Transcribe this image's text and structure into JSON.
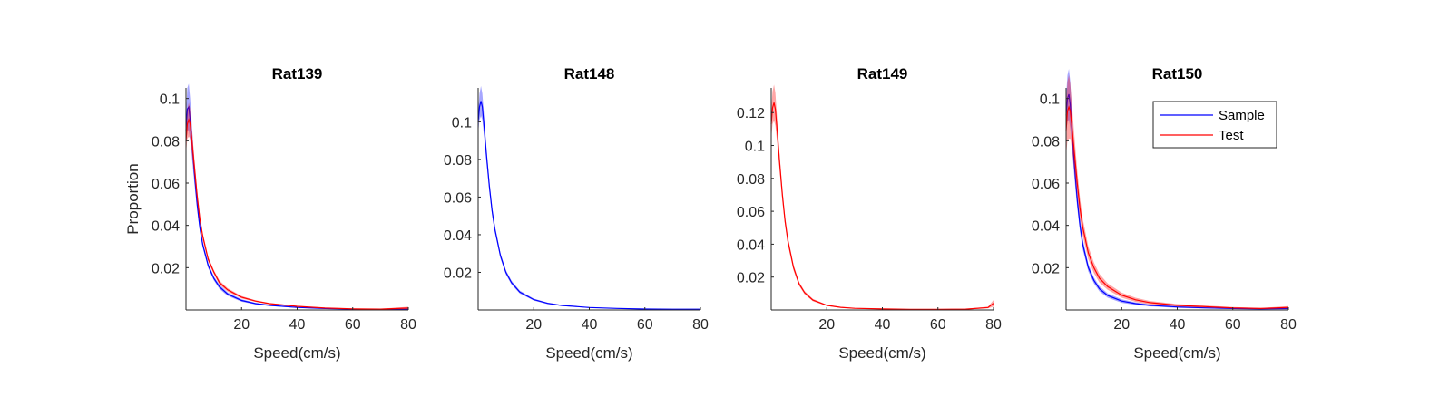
{
  "figure": {
    "background": "#ffffff",
    "axis_color": "#262626",
    "band_opacity": 0.35
  },
  "legend": {
    "placement": "top-right",
    "entries": [
      {
        "name": "Sample",
        "color": "#0000ff"
      },
      {
        "name": "Test",
        "color": "#ff0000"
      }
    ]
  },
  "chart_data": [
    {
      "type": "line",
      "title": "Rat139",
      "xlabel": "Speed(cm/s)",
      "ylabel": "Proportion",
      "xlim": [
        0,
        80
      ],
      "ylim": [
        0,
        0.105
      ],
      "xticks": [
        20,
        40,
        60,
        80
      ],
      "yticks": [
        0.02,
        0.04,
        0.06,
        0.08,
        0.1
      ],
      "ytick_labels": [
        "0.02",
        "0.04",
        "0.06",
        "0.08",
        "0.1"
      ],
      "grid": false,
      "series": [
        {
          "name": "Sample",
          "color": "#0000ff",
          "x": [
            0,
            0.5,
            1,
            1.5,
            2,
            3,
            4,
            5,
            6,
            8,
            10,
            12,
            15,
            20,
            25,
            30,
            40,
            50,
            60,
            70,
            80
          ],
          "y": [
            0.085,
            0.095,
            0.096,
            0.09,
            0.082,
            0.065,
            0.05,
            0.039,
            0.031,
            0.021,
            0.015,
            0.011,
            0.0075,
            0.0045,
            0.003,
            0.0022,
            0.0012,
            0.0007,
            0.0004,
            0.0003,
            0.0003
          ],
          "band": [
            0.008,
            0.01,
            0.011,
            0.01,
            0.008,
            0.005,
            0.003,
            0.002,
            0.0015,
            0.0012,
            0.001,
            0.001,
            0.0008,
            0.0006,
            0.0004,
            0.0003,
            0.0002,
            0.0002,
            0.0001,
            0.0001,
            0.0002
          ]
        },
        {
          "name": "Test",
          "color": "#ff0000",
          "x": [
            0,
            0.5,
            1,
            1.5,
            2,
            3,
            4,
            5,
            6,
            8,
            10,
            12,
            15,
            20,
            25,
            30,
            40,
            50,
            60,
            70,
            80
          ],
          "y": [
            0.08,
            0.088,
            0.09,
            0.088,
            0.082,
            0.068,
            0.054,
            0.043,
            0.035,
            0.024,
            0.018,
            0.013,
            0.0095,
            0.006,
            0.0042,
            0.003,
            0.0017,
            0.0009,
            0.0005,
            0.0004,
            0.0009
          ],
          "band": [
            0.006,
            0.007,
            0.008,
            0.007,
            0.006,
            0.004,
            0.003,
            0.002,
            0.0016,
            0.0012,
            0.001,
            0.001,
            0.0008,
            0.0006,
            0.0004,
            0.0003,
            0.0002,
            0.0002,
            0.0002,
            0.0002,
            0.0006
          ]
        }
      ]
    },
    {
      "type": "line",
      "title": "Rat148",
      "xlabel": "Speed(cm/s)",
      "ylabel": "",
      "xlim": [
        0,
        80
      ],
      "ylim": [
        0,
        0.118
      ],
      "xticks": [
        20,
        40,
        60,
        80
      ],
      "yticks": [
        0.02,
        0.04,
        0.06,
        0.08,
        0.1
      ],
      "ytick_labels": [
        "0.02",
        "0.04",
        "0.06",
        "0.08",
        "0.1"
      ],
      "grid": false,
      "series": [
        {
          "name": "Sample",
          "color": "#0000ff",
          "x": [
            0,
            0.5,
            1,
            1.5,
            2,
            3,
            4,
            5,
            6,
            8,
            10,
            12,
            15,
            20,
            25,
            30,
            40,
            50,
            60,
            70,
            80
          ],
          "y": [
            0.1,
            0.108,
            0.111,
            0.108,
            0.1,
            0.082,
            0.066,
            0.053,
            0.043,
            0.029,
            0.02,
            0.0145,
            0.0095,
            0.0055,
            0.0035,
            0.0024,
            0.0013,
            0.0008,
            0.0005,
            0.0004,
            0.0004
          ],
          "band": [
            0.006,
            0.007,
            0.008,
            0.007,
            0.006,
            0.004,
            0.003,
            0.0025,
            0.002,
            0.0015,
            0.0012,
            0.001,
            0.0008,
            0.0005,
            0.0004,
            0.0003,
            0.0002,
            0.0001,
            0.0001,
            0.0001,
            0.0002
          ]
        }
      ]
    },
    {
      "type": "line",
      "title": "Rat149",
      "xlabel": "Speed(cm/s)",
      "ylabel": "",
      "xlim": [
        0,
        80
      ],
      "ylim": [
        0,
        0.135
      ],
      "xticks": [
        20,
        40,
        60,
        80
      ],
      "yticks": [
        0.02,
        0.04,
        0.06,
        0.08,
        0.1,
        0.12
      ],
      "ytick_labels": [
        "0.02",
        "0.04",
        "0.06",
        "0.08",
        "0.1",
        "0.12"
      ],
      "grid": false,
      "series": [
        {
          "name": "Test",
          "color": "#ff0000",
          "x": [
            0,
            0.5,
            1,
            1.5,
            2,
            3,
            4,
            5,
            6,
            8,
            10,
            12,
            15,
            20,
            25,
            30,
            40,
            50,
            60,
            70,
            78,
            80
          ],
          "y": [
            0.113,
            0.123,
            0.126,
            0.122,
            0.112,
            0.09,
            0.07,
            0.054,
            0.042,
            0.026,
            0.016,
            0.0105,
            0.006,
            0.0028,
            0.0016,
            0.001,
            0.0006,
            0.0004,
            0.0004,
            0.0005,
            0.0015,
            0.004
          ],
          "band": [
            0.009,
            0.01,
            0.011,
            0.01,
            0.008,
            0.005,
            0.004,
            0.003,
            0.0025,
            0.0018,
            0.0012,
            0.001,
            0.0007,
            0.0004,
            0.0003,
            0.0002,
            0.0001,
            0.0001,
            0.0001,
            0.0002,
            0.0005,
            0.002
          ]
        }
      ]
    },
    {
      "type": "line",
      "title": "Rat150",
      "xlabel": "Speed(cm/s)",
      "ylabel": "",
      "xlim": [
        0,
        80
      ],
      "ylim": [
        0,
        0.105
      ],
      "xticks": [
        20,
        40,
        60,
        80
      ],
      "yticks": [
        0.02,
        0.04,
        0.06,
        0.08,
        0.1
      ],
      "ytick_labels": [
        "0.02",
        "0.04",
        "0.06",
        "0.08",
        "0.1"
      ],
      "grid": false,
      "series": [
        {
          "name": "Sample",
          "color": "#0000ff",
          "x": [
            0,
            0.5,
            1,
            1.5,
            2,
            3,
            4,
            5,
            6,
            8,
            10,
            12,
            15,
            20,
            25,
            30,
            40,
            50,
            60,
            70,
            80
          ],
          "y": [
            0.092,
            0.1,
            0.102,
            0.097,
            0.088,
            0.068,
            0.052,
            0.04,
            0.031,
            0.02,
            0.014,
            0.01,
            0.0068,
            0.0042,
            0.003,
            0.0022,
            0.0014,
            0.001,
            0.0007,
            0.0005,
            0.0007
          ],
          "band": [
            0.009,
            0.011,
            0.012,
            0.011,
            0.009,
            0.006,
            0.004,
            0.003,
            0.0025,
            0.0018,
            0.0014,
            0.0012,
            0.001,
            0.0008,
            0.0006,
            0.0005,
            0.0004,
            0.0003,
            0.0002,
            0.0002,
            0.0004
          ]
        },
        {
          "name": "Test",
          "color": "#ff0000",
          "x": [
            0,
            0.5,
            1,
            1.5,
            2,
            3,
            4,
            5,
            6,
            8,
            10,
            12,
            15,
            20,
            25,
            30,
            40,
            50,
            60,
            70,
            80
          ],
          "y": [
            0.085,
            0.094,
            0.096,
            0.094,
            0.088,
            0.074,
            0.06,
            0.048,
            0.039,
            0.027,
            0.02,
            0.015,
            0.011,
            0.007,
            0.0048,
            0.0035,
            0.0022,
            0.0016,
            0.001,
            0.0007,
            0.0012
          ],
          "band": [
            0.012,
            0.014,
            0.015,
            0.013,
            0.011,
            0.008,
            0.006,
            0.005,
            0.004,
            0.003,
            0.0025,
            0.002,
            0.0015,
            0.0012,
            0.001,
            0.0008,
            0.0006,
            0.0005,
            0.0004,
            0.0003,
            0.0006
          ]
        }
      ]
    }
  ]
}
